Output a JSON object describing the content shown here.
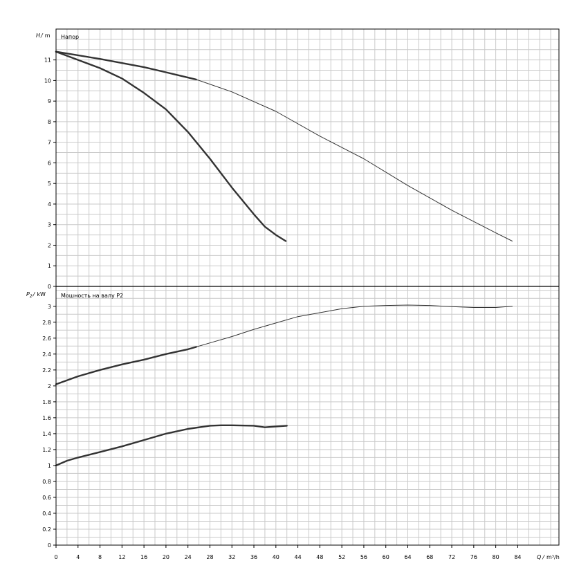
{
  "chart_data": [
    {
      "type": "line",
      "title": "Напор",
      "ylabel_symbol": "H",
      "ylabel_sep": "/",
      "yunit": "m",
      "ylim": [
        0,
        12.5
      ],
      "xlim": [
        0,
        91.5
      ],
      "yticks": [
        0,
        1,
        2,
        3,
        4,
        5,
        6,
        7,
        8,
        9,
        10,
        11
      ],
      "grid": true,
      "series": [
        {
          "x": [
            0,
            4,
            8,
            12,
            16,
            20,
            24,
            28,
            32,
            36,
            38,
            40,
            41.8
          ],
          "y": [
            11.4,
            11.0,
            10.6,
            10.1,
            9.4,
            8.6,
            7.5,
            6.2,
            4.8,
            3.5,
            2.9,
            2.5,
            2.2
          ],
          "color": "#333333",
          "width": 2.4
        },
        {
          "x": [
            0,
            8,
            16,
            20,
            25.5
          ],
          "y": [
            11.4,
            11.05,
            10.65,
            10.4,
            10.05
          ],
          "color": "#333333",
          "width": 2.4
        },
        {
          "x": [
            25.5,
            32,
            40,
            48,
            56,
            64,
            72,
            80,
            83
          ],
          "y": [
            10.05,
            9.45,
            8.5,
            7.3,
            6.2,
            4.9,
            3.7,
            2.6,
            2.2
          ],
          "color": "#333333",
          "width": 1
        }
      ]
    },
    {
      "type": "line",
      "title": "Мошность на валу P2",
      "ylabel_symbol": "P",
      "ylabel_sub": "2",
      "ylabel_sep": "/",
      "yunit": "kW",
      "ylim": [
        0,
        3.25
      ],
      "xlim": [
        0,
        91.5
      ],
      "yticks": [
        "0",
        "0.2",
        "0.4",
        "0.6",
        "0.8",
        "1",
        "1.2",
        "1.4",
        "1.6",
        "1.8",
        "2",
        "2.2",
        "2.4",
        "2.6",
        "2.8",
        "3"
      ],
      "xticks": [
        "0",
        "4",
        "8",
        "12",
        "16",
        "20",
        "24",
        "28",
        "32",
        "36",
        "40",
        "44",
        "48",
        "52",
        "56",
        "60",
        "64",
        "68",
        "72",
        "76",
        "80",
        "84"
      ],
      "xlabel_symbol": "Q",
      "xlabel_sep": "/",
      "xunit": "m³/h",
      "grid": true,
      "series": [
        {
          "x": [
            0,
            2,
            4,
            8,
            12,
            16,
            20,
            24,
            28,
            30,
            32,
            36,
            38,
            40,
            42
          ],
          "y": [
            1.0,
            1.06,
            1.1,
            1.17,
            1.24,
            1.32,
            1.4,
            1.46,
            1.5,
            1.505,
            1.505,
            1.5,
            1.48,
            1.49,
            1.5
          ],
          "color": "#333333",
          "width": 2.4
        },
        {
          "x": [
            0,
            2,
            4,
            8,
            12,
            16,
            20,
            24,
            25.5
          ],
          "y": [
            2.02,
            2.07,
            2.12,
            2.2,
            2.27,
            2.33,
            2.4,
            2.46,
            2.49
          ],
          "color": "#333333",
          "width": 2.4
        },
        {
          "x": [
            25.5,
            28,
            32,
            36,
            40,
            44,
            48,
            52,
            56,
            60,
            64,
            68,
            72,
            76,
            80,
            83
          ],
          "y": [
            2.49,
            2.54,
            2.62,
            2.71,
            2.79,
            2.87,
            2.92,
            2.97,
            3.0,
            3.01,
            3.015,
            3.01,
            2.995,
            2.985,
            2.985,
            3.0
          ],
          "color": "#333333",
          "width": 1
        }
      ]
    }
  ]
}
